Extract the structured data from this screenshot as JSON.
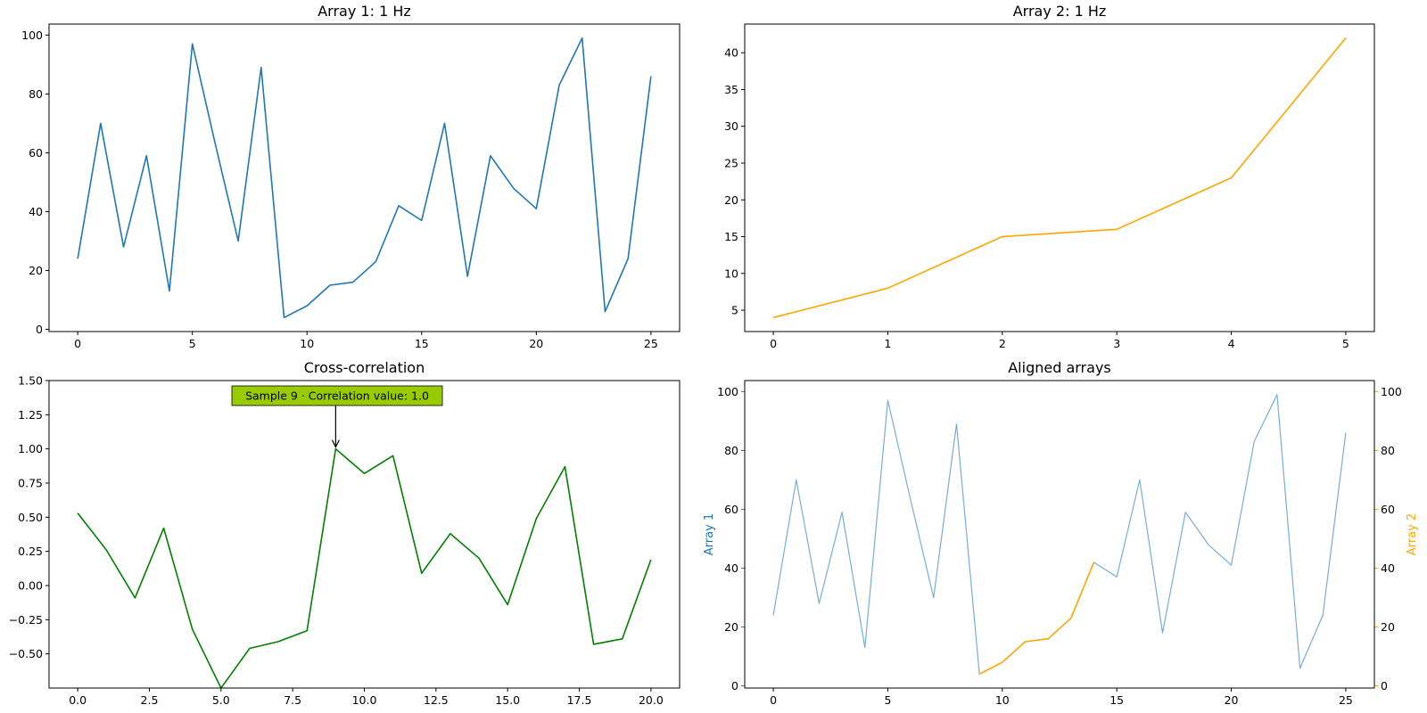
{
  "chart_data": [
    {
      "type": "line",
      "title": "Array 1: 1 Hz",
      "x": [
        0,
        1,
        2,
        3,
        4,
        5,
        6,
        7,
        8,
        9,
        10,
        11,
        12,
        13,
        14,
        15,
        16,
        17,
        18,
        19,
        20,
        21,
        22,
        23,
        24,
        25
      ],
      "series": [
        {
          "values": [
            24,
            70,
            28,
            59,
            13,
            97,
            63,
            30,
            89,
            4,
            8,
            15,
            16,
            23,
            42,
            37,
            70,
            18,
            59,
            48,
            41,
            83,
            99,
            6,
            24,
            86
          ],
          "color": "#1f77b4"
        }
      ],
      "xlim": [
        -1.25,
        26.25
      ],
      "ylim": [
        -0.75,
        103.75
      ],
      "xticks": [
        0,
        5,
        10,
        15,
        20,
        25
      ],
      "yticks": [
        0,
        20,
        40,
        60,
        80,
        100
      ],
      "xtick_labels": [
        "0",
        "5",
        "10",
        "15",
        "20",
        "25"
      ],
      "ytick_labels": [
        "0",
        "20",
        "40",
        "60",
        "80",
        "100"
      ]
    },
    {
      "type": "line",
      "title": "Array 2: 1 Hz",
      "x": [
        0,
        1,
        2,
        3,
        4,
        5
      ],
      "series": [
        {
          "values": [
            4,
            8,
            15,
            16,
            23,
            42
          ],
          "color": "#ffa500"
        }
      ],
      "xlim": [
        -0.25,
        5.25
      ],
      "ylim": [
        2.1,
        43.9
      ],
      "xticks": [
        0,
        1,
        2,
        3,
        4,
        5
      ],
      "yticks": [
        5,
        10,
        15,
        20,
        25,
        30,
        35,
        40
      ],
      "xtick_labels": [
        "0",
        "1",
        "2",
        "3",
        "4",
        "5"
      ],
      "ytick_labels": [
        "5",
        "10",
        "15",
        "20",
        "25",
        "30",
        "35",
        "40"
      ]
    },
    {
      "type": "line",
      "title": "Cross-correlation",
      "x": [
        0,
        1,
        2,
        3,
        4,
        5,
        6,
        7,
        8,
        9,
        10,
        11,
        12,
        13,
        14,
        15,
        16,
        17,
        18,
        19,
        20
      ],
      "series": [
        {
          "values": [
            0.53,
            0.26,
            -0.09,
            0.42,
            -0.32,
            -0.75,
            -0.46,
            -0.41,
            -0.33,
            1.0,
            0.82,
            0.95,
            0.09,
            0.38,
            0.2,
            -0.14,
            0.49,
            0.87,
            -0.43,
            -0.39,
            0.19
          ],
          "color": "#008000"
        }
      ],
      "xlim": [
        -1.0,
        21.0
      ],
      "ylim": [
        -0.75,
        1.5
      ],
      "xticks": [
        0,
        2.5,
        5,
        7.5,
        10,
        12.5,
        15,
        17.5,
        20
      ],
      "yticks": [
        -0.5,
        -0.25,
        0,
        0.25,
        0.5,
        0.75,
        1.0,
        1.25,
        1.5
      ],
      "xtick_labels": [
        "0.0",
        "2.5",
        "5.0",
        "7.5",
        "10.0",
        "12.5",
        "15.0",
        "17.5",
        "20.0"
      ],
      "ytick_labels": [
        "−0.50",
        "−0.25",
        "0.00",
        "0.25",
        "0.50",
        "0.75",
        "1.00",
        "1.25",
        "1.50"
      ],
      "annotation": {
        "text": "Sample 9 · Correlation value: 1.0",
        "x": 9,
        "y": 1.0,
        "box_color": "#99cc00"
      }
    },
    {
      "type": "line",
      "title": "Aligned arrays",
      "x": [
        0,
        1,
        2,
        3,
        4,
        5,
        6,
        7,
        8,
        9,
        10,
        11,
        12,
        13,
        14,
        15,
        16,
        17,
        18,
        19,
        20,
        21,
        22,
        23,
        24,
        25
      ],
      "series": [
        {
          "values": [
            24,
            70,
            28,
            59,
            13,
            97,
            63,
            30,
            89,
            4,
            8,
            15,
            16,
            23,
            42,
            37,
            70,
            18,
            59,
            48,
            41,
            83,
            99,
            6,
            24,
            86
          ],
          "color": "#1f77b4",
          "alpha": 0.6,
          "axis": "left"
        },
        {
          "x": [
            9,
            10,
            11,
            12,
            13,
            14
          ],
          "values": [
            4,
            8,
            15,
            16,
            23,
            42
          ],
          "color": "#ffa500",
          "axis": "right"
        }
      ],
      "xlim": [
        -1.25,
        26.25
      ],
      "ylim": [
        -0.75,
        103.75
      ],
      "ylim_right": [
        -0.75,
        103.75
      ],
      "xticks": [
        0,
        5,
        10,
        15,
        20,
        25
      ],
      "yticks": [
        0,
        20,
        40,
        60,
        80,
        100
      ],
      "xtick_labels": [
        "0",
        "5",
        "10",
        "15",
        "20",
        "25"
      ],
      "ytick_labels": [
        "0",
        "20",
        "40",
        "60",
        "80",
        "100"
      ],
      "ylabel": "Array 1",
      "ylabel_right": "Array 2",
      "ylabel_color": "#1f77b4",
      "ylabel_right_color": "#ffa500"
    }
  ]
}
